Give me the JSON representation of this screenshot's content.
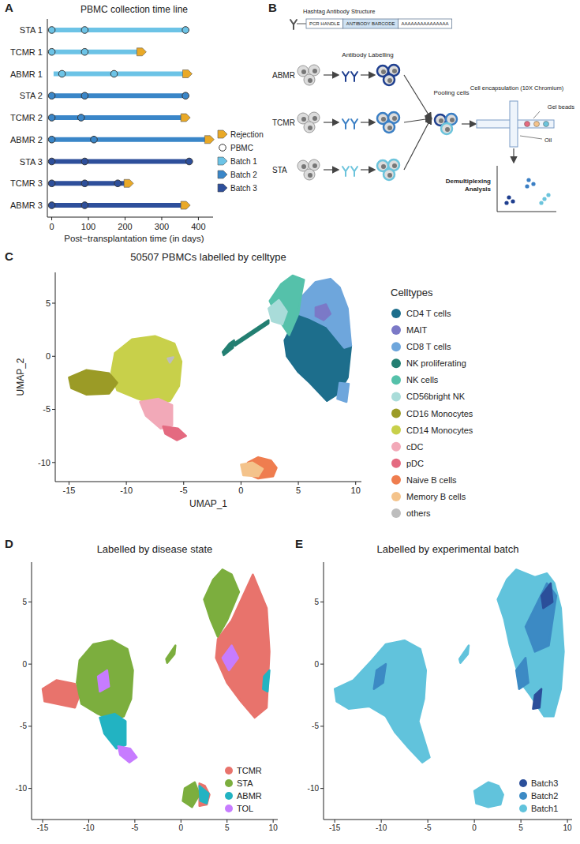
{
  "chart_data": [
    {
      "type": "timeline",
      "panel_label": "A",
      "title": "PBMC collection time line",
      "x_label": "Post−transplantation time (in days)",
      "xlim": [
        -12,
        440
      ],
      "xticks": [
        0,
        100,
        200,
        300,
        400
      ],
      "legend": "right",
      "legend_items": [
        {
          "name": "Rejection",
          "color": "#e9a927",
          "marker": "pentagon"
        },
        {
          "name": "PBMC",
          "color": "#ffffff",
          "marker": "circle"
        }
      ],
      "series": [
        {
          "name": "Batch 1",
          "color": "#6cc3e6",
          "marker": "pentagon"
        },
        {
          "name": "Batch 2",
          "color": "#3a86c8",
          "marker": "pentagon"
        },
        {
          "name": "Batch 3",
          "color": "#2e4f9b",
          "marker": "pentagon"
        }
      ],
      "rows": [
        {
          "name": "STA 1",
          "batch": "Batch 1",
          "start": 0,
          "end": 365,
          "pbmc": [
            0,
            90,
            365
          ],
          "rejection": null
        },
        {
          "name": "TCMR 1",
          "batch": "Batch 1",
          "start": 0,
          "end": 245,
          "pbmc": [
            0,
            90
          ],
          "rejection": 245
        },
        {
          "name": "ABMR 1",
          "batch": "Batch 1",
          "start": 5,
          "end": 370,
          "pbmc": [
            28,
            170
          ],
          "rejection": 370
        },
        {
          "name": "STA 2",
          "batch": "Batch 2",
          "start": 0,
          "end": 365,
          "pbmc": [
            0,
            90,
            365
          ],
          "rejection": null
        },
        {
          "name": "TCMR 2",
          "batch": "Batch 2",
          "start": 0,
          "end": 365,
          "pbmc": [
            0,
            80
          ],
          "rejection": 365
        },
        {
          "name": "ABMR 2",
          "batch": "Batch 2",
          "start": 0,
          "end": 430,
          "pbmc": [
            0,
            115
          ],
          "rejection": 430
        },
        {
          "name": "STA 3",
          "batch": "Batch 3",
          "start": 0,
          "end": 375,
          "pbmc": [
            0,
            90,
            375
          ],
          "rejection": null
        },
        {
          "name": "TCMR 3",
          "batch": "Batch 3",
          "start": 0,
          "end": 210,
          "pbmc": [
            0,
            90,
            180
          ],
          "rejection": 210
        },
        {
          "name": "ABMR 3",
          "batch": "Batch 3",
          "start": 0,
          "end": 365,
          "pbmc": [
            0,
            90
          ],
          "rejection": 365
        }
      ]
    },
    {
      "type": "umap",
      "panel_label": "C",
      "title": "50507 PBMCs labelled by celltype",
      "x_label": "UMAP_1",
      "y_label": "UMAP_2",
      "legend_title": "Celltypes",
      "legend": "right",
      "xlim": [
        -16.2,
        10.5
      ],
      "ylim": [
        -11.8,
        7.9
      ],
      "xticks": [
        -15,
        -10,
        -5,
        0,
        5,
        10
      ],
      "yticks": [
        -10,
        -5,
        0,
        5
      ],
      "series": [
        {
          "name": "CD4 T cells",
          "color": "#1d6e8c",
          "x": [
            3.8,
            5.0,
            6.0,
            7.5,
            9.0,
            9.6,
            9.3,
            8.5,
            7.5,
            6.0,
            5.0,
            4.0
          ],
          "y": [
            1.5,
            4.0,
            3.6,
            2.8,
            0.8,
            1.0,
            -2.0,
            -3.5,
            -4.2,
            -2.5,
            -1.5,
            0.0
          ]
        },
        {
          "name": "MAIT",
          "color": "#7b79c7",
          "x": [
            6.5,
            7.4,
            7.8,
            7.2,
            6.5
          ],
          "y": [
            4.6,
            4.9,
            4.0,
            3.4,
            3.8
          ]
        },
        {
          "name": "CD8 T cells",
          "color": "#6ea6dc",
          "x": [
            5.2,
            6.5,
            7.8,
            8.6,
            9.3,
            9.6,
            9.0,
            7.5,
            6.0,
            5.0,
            null,
            8.6,
            9.4,
            9.2,
            8.4
          ],
          "y": [
            5.5,
            7.0,
            7.3,
            6.5,
            4.5,
            1.0,
            0.8,
            2.8,
            3.6,
            4.0,
            null,
            -2.5,
            -2.6,
            -4.3,
            -4.0
          ]
        },
        {
          "name": "NK proliferating",
          "color": "#237f72",
          "x": [
            -1.6,
            -1.0,
            -0.6,
            -0.7,
            -1.5,
            null,
            -0.5,
            2.4,
            2.4,
            -0.5
          ],
          "y": [
            0.4,
            1.2,
            1.5,
            0.8,
            0.1,
            null,
            1.3,
            3.4,
            3.1,
            1.0
          ]
        },
        {
          "name": "NK cells",
          "color": "#55c1aa",
          "x": [
            2.5,
            3.5,
            4.5,
            5.5,
            5.2,
            5.0,
            4.2,
            3.2
          ],
          "y": [
            5.2,
            6.8,
            7.6,
            7.2,
            5.5,
            4.0,
            2.0,
            3.6
          ]
        },
        {
          "name": "CD56bright NK",
          "color": "#a9dcd9",
          "x": [
            2.4,
            3.3,
            4.0,
            3.6,
            2.7
          ],
          "y": [
            4.5,
            5.3,
            4.2,
            3.0,
            3.3
          ]
        },
        {
          "name": "CD16 Monocytes",
          "color": "#9b9b26",
          "x": [
            -15.0,
            -13.5,
            -11.5,
            -10.8,
            -11.5,
            -13.5,
            -14.8
          ],
          "y": [
            -2.0,
            -1.3,
            -1.6,
            -2.5,
            -3.5,
            -3.6,
            -3.0
          ]
        },
        {
          "name": "CD14 Monocytes",
          "color": "#c8d04a",
          "x": [
            -11.0,
            -9.5,
            -7.5,
            -5.8,
            -5.2,
            -5.4,
            -6.2,
            -7.5,
            -9.0,
            -10.8,
            -11.3
          ],
          "y": [
            0.3,
            1.6,
            1.9,
            1.2,
            -0.5,
            -2.8,
            -4.2,
            -4.5,
            -4.0,
            -3.2,
            -1.5
          ]
        },
        {
          "name": "cDC",
          "color": "#f2a9b8",
          "x": [
            -8.8,
            -7.2,
            -6.0,
            -6.0,
            -7.0,
            -8.3
          ],
          "y": [
            -4.3,
            -4.0,
            -4.6,
            -6.5,
            -6.8,
            -5.6
          ]
        },
        {
          "name": "pDC",
          "color": "#e46a80",
          "x": [
            -6.8,
            -5.5,
            -4.8,
            -5.6,
            -6.6
          ],
          "y": [
            -6.6,
            -6.8,
            -7.5,
            -7.9,
            -7.3
          ]
        },
        {
          "name": "Naive B cells",
          "color": "#ef7d4f",
          "x": [
            0.6,
            1.5,
            2.6,
            3.1,
            2.8,
            1.5,
            0.4
          ],
          "y": [
            -10.0,
            -9.5,
            -9.8,
            -10.5,
            -11.3,
            -11.5,
            -11.0
          ]
        },
        {
          "name": "Memory B cells",
          "color": "#f4c38b",
          "x": [
            0.0,
            1.0,
            1.9,
            1.5,
            0.2
          ],
          "y": [
            -10.2,
            -10.0,
            -10.6,
            -11.3,
            -11.2
          ]
        },
        {
          "name": "others",
          "color": "#bdbdbd",
          "x": [
            -6.4,
            -5.9,
            -6.2
          ],
          "y": [
            -0.2,
            -0.1,
            -0.6
          ]
        }
      ]
    },
    {
      "type": "umap",
      "panel_label": "D",
      "title": "Labelled by disease state",
      "legend": "lower right",
      "xlim": [
        -16.2,
        10.5
      ],
      "ylim": [
        -12.5,
        8.2
      ],
      "xticks": [
        -15,
        -10,
        -5,
        0,
        5,
        10
      ],
      "yticks": [
        -10,
        -5,
        0,
        5
      ],
      "series": [
        {
          "name": "TCMR",
          "color": "#e8736c",
          "x": [
            4.0,
            5.5,
            7.8,
            9.3,
            9.6,
            9.3,
            8.0,
            6.5,
            5.0,
            3.8,
            null,
            -15.0,
            -13.5,
            -11.5,
            -11.0,
            -11.5,
            -14.8,
            null,
            2.0,
            2.6,
            3.1,
            2.8,
            2.0
          ],
          "y": [
            2.0,
            3.5,
            7.2,
            4.5,
            1.0,
            -3.5,
            -4.3,
            -3.0,
            -1.5,
            0.5,
            null,
            -2.0,
            -1.3,
            -1.6,
            -2.5,
            -3.5,
            -3.0,
            null,
            -9.6,
            -9.8,
            -10.5,
            -11.3,
            -11.4
          ]
        },
        {
          "name": "STA",
          "color": "#7cae3e",
          "x": [
            -11.0,
            -9.5,
            -7.5,
            -5.8,
            -5.2,
            -5.4,
            -6.2,
            -7.5,
            -9.0,
            -10.8,
            -11.3,
            null,
            2.5,
            3.5,
            4.5,
            5.5,
            6.3,
            5.0,
            4.0,
            3.2,
            null,
            0.4,
            1.5,
            2.0,
            1.2,
            0.2,
            null,
            -1.6,
            -0.6,
            -0.7,
            -1.5
          ],
          "y": [
            0.3,
            1.6,
            1.9,
            1.2,
            -0.5,
            -2.8,
            -4.2,
            -4.5,
            -4.0,
            -3.2,
            -1.5,
            null,
            5.2,
            6.8,
            7.6,
            7.2,
            5.8,
            3.5,
            2.2,
            3.6,
            null,
            -10.0,
            -9.5,
            -10.5,
            -11.5,
            -11.0,
            null,
            0.4,
            1.5,
            0.8,
            0.1
          ]
        },
        {
          "name": "ABMR",
          "color": "#22b3c2",
          "x": [
            -8.8,
            -7.2,
            -6.0,
            -6.0,
            -7.0,
            -8.3,
            null,
            9.0,
            9.6,
            9.4,
            8.9,
            null,
            2.0,
            3.0,
            2.8,
            2.1
          ],
          "y": [
            -4.3,
            -4.0,
            -4.6,
            -6.5,
            -6.8,
            -5.6,
            null,
            -1.0,
            -0.5,
            -2.2,
            -2.0,
            null,
            -9.8,
            -10.4,
            -11.2,
            -11.0
          ]
        },
        {
          "name": "TOL",
          "color": "#c77cff",
          "x": [
            4.5,
            5.5,
            6.2,
            5.2,
            null,
            -9.0,
            -8.0,
            -7.8,
            -8.8,
            null,
            -6.8,
            -5.5,
            -4.8,
            -5.6,
            -6.6
          ],
          "y": [
            0.5,
            1.5,
            0.5,
            -0.5,
            null,
            -1.0,
            -0.5,
            -1.8,
            -2.2,
            null,
            -6.6,
            -6.8,
            -7.5,
            -7.9,
            -7.3
          ]
        }
      ]
    },
    {
      "type": "umap",
      "panel_label": "E",
      "title": "Labelled by experimental batch",
      "legend": "lower right",
      "xlim": [
        -16.2,
        10.5
      ],
      "ylim": [
        -12.5,
        8.2
      ],
      "xticks": [
        -15,
        -10,
        -5,
        0,
        5,
        10
      ],
      "yticks": [
        -10,
        -5,
        0,
        5
      ],
      "series": [
        {
          "name": "Batch3",
          "color": "#2b4f9a",
          "x": [
            7.2,
            8.2,
            8.4,
            7.4,
            null,
            6.5,
            7.2,
            7.0,
            6.3
          ],
          "y": [
            5.5,
            6.5,
            5.0,
            4.5,
            null,
            -2.5,
            -2.0,
            -3.5,
            -3.6
          ]
        },
        {
          "name": "Batch2",
          "color": "#3c8ac4",
          "x": [
            5.5,
            7.8,
            8.8,
            8.0,
            6.5,
            null,
            4.5,
            5.5,
            5.8,
            4.8,
            null,
            -10.5,
            -9.5,
            -9.8,
            -10.8
          ],
          "y": [
            3.0,
            6.5,
            5.5,
            1.5,
            1.0,
            null,
            -0.5,
            0.5,
            -1.5,
            -2.0,
            null,
            -0.5,
            0.0,
            -1.5,
            -2.0
          ]
        },
        {
          "name": "Batch1",
          "color": "#61c3dc",
          "x": [
            -15.0,
            -13.0,
            -11.0,
            -9.5,
            -7.5,
            -5.8,
            -5.2,
            -5.4,
            -6.0,
            -4.8,
            -5.6,
            -7.0,
            -8.5,
            -9.5,
            -11.3,
            -13.5,
            -14.8,
            null,
            2.5,
            3.5,
            4.5,
            6.5,
            7.8,
            8.6,
            9.3,
            9.6,
            9.3,
            8.5,
            7.5,
            6.0,
            5.0,
            3.8,
            3.2,
            null,
            0.0,
            1.5,
            2.6,
            3.1,
            2.8,
            1.5,
            0.2,
            null,
            -1.6,
            -0.6,
            -0.7,
            -1.5
          ],
          "y": [
            -2.0,
            -1.3,
            0.3,
            1.6,
            1.9,
            1.2,
            -0.5,
            -2.8,
            -4.6,
            -7.5,
            -7.9,
            -6.8,
            -5.5,
            -4.2,
            -3.4,
            -3.6,
            -3.0,
            null,
            5.2,
            6.8,
            7.6,
            7.0,
            7.3,
            6.5,
            4.5,
            1.0,
            -2.0,
            -4.2,
            -4.2,
            -2.5,
            -1.5,
            1.5,
            3.6,
            null,
            -10.2,
            -9.5,
            -9.8,
            -10.5,
            -11.3,
            -11.5,
            -11.2,
            null,
            0.4,
            1.5,
            0.8,
            0.1
          ]
        }
      ]
    }
  ],
  "diagram": {
    "panel_label": "B",
    "structure_title": "Hashtag Antibody Structure",
    "segments": [
      "PCR HANDLE",
      "ANTIBODY BARCODE",
      "AAAAAAAAAAAAAAA"
    ],
    "groups": [
      "ABMR",
      "TCMR",
      "STA"
    ],
    "steps": [
      "Antibody Labelling",
      "Pooling cells",
      "Cell encapsulation (10X Chromium)"
    ],
    "callouts": [
      "Gel beads",
      "Oil"
    ],
    "output": "Demultiplexing Analysis"
  }
}
